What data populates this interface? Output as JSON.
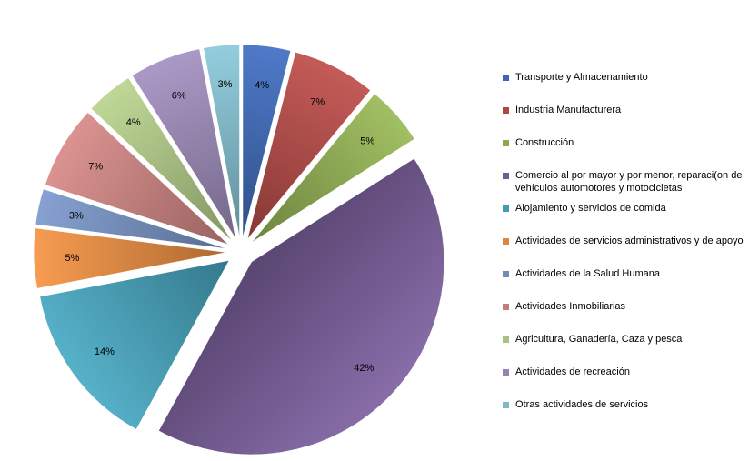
{
  "chart_data": {
    "type": "pie",
    "title": "",
    "legend_position": "right",
    "exploded": true,
    "shading": "gradient",
    "slices": [
      {
        "label": "Transporte y Almacenamiento",
        "value": 4,
        "display": "4%",
        "color": "#4472C4"
      },
      {
        "label": "Industria Manufacturera",
        "value": 7,
        "display": "7%",
        "color": "#C0504D"
      },
      {
        "label": "Construcción",
        "value": 5,
        "display": "5%",
        "color": "#9BBB59"
      },
      {
        "label": "Comercio al por mayor y por menor, reparaci(on de vehículos automotores y motocicletas",
        "value": 42,
        "display": "42%",
        "color": "#8064A2"
      },
      {
        "label": "Alojamiento y servicios de comida",
        "value": 14,
        "display": "14%",
        "color": "#4BACC6"
      },
      {
        "label": "Actividades de servicios administrativos y de apoyo",
        "value": 5,
        "display": "5%",
        "color": "#F79646"
      },
      {
        "label": "Actividades de la Salud Humana",
        "value": 3,
        "display": "3%",
        "color": "#7E9BCF"
      },
      {
        "label": "Actividades Inmobiliarias",
        "value": 7,
        "display": "7%",
        "color": "#D98C8A"
      },
      {
        "label": "Agricultura, Ganadería, Caza y pesca",
        "value": 4,
        "display": "4%",
        "color": "#BBD58F"
      },
      {
        "label": "Actividades de recreación",
        "value": 6,
        "display": "6%",
        "color": "#A593C2"
      },
      {
        "label": "Otras actividades de servicios",
        "value": 3,
        "display": "3%",
        "color": "#8CCBDC"
      }
    ]
  }
}
